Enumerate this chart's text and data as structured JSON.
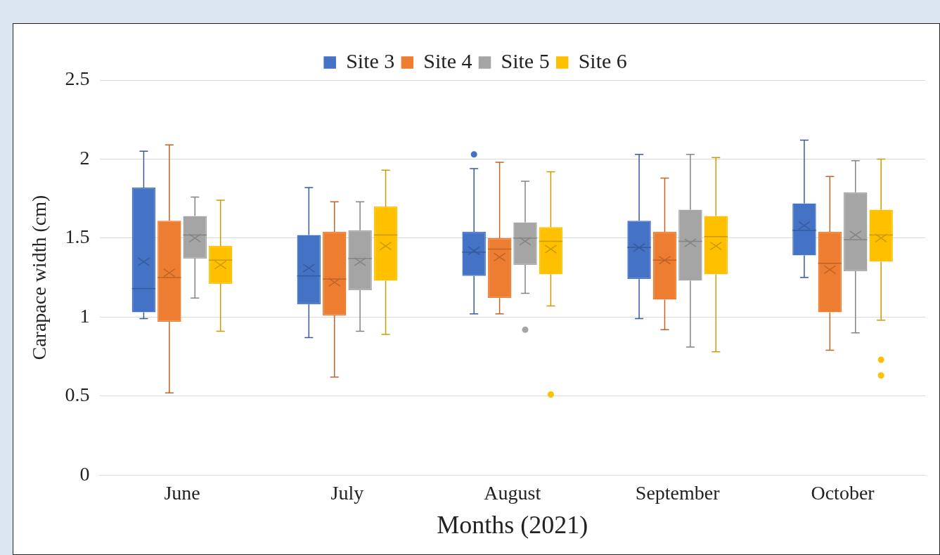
{
  "chart_data": {
    "type": "box",
    "xlabel": "Months (2021)",
    "ylabel": "Carapace width (cm)",
    "categories": [
      "June",
      "July",
      "August",
      "September",
      "October"
    ],
    "ylim": [
      0,
      2.5
    ],
    "yticks": [
      0,
      0.5,
      1,
      1.5,
      2,
      2.5
    ],
    "grid": "y",
    "legend": "top",
    "series": [
      {
        "name": "Site 3",
        "color": "#4472c4",
        "boxes": [
          {
            "low": 0.99,
            "q1": 1.03,
            "median": 1.18,
            "q3": 1.82,
            "high": 2.05,
            "mean": 1.35
          },
          {
            "low": 0.87,
            "q1": 1.08,
            "median": 1.26,
            "q3": 1.52,
            "high": 1.82,
            "mean": 1.31
          },
          {
            "low": 1.02,
            "q1": 1.26,
            "median": 1.41,
            "q3": 1.54,
            "high": 1.94,
            "mean": 1.42,
            "outliers": [
              2.03
            ]
          },
          {
            "low": 0.99,
            "q1": 1.24,
            "median": 1.44,
            "q3": 1.61,
            "high": 2.03,
            "mean": 1.44
          },
          {
            "low": 1.25,
            "q1": 1.39,
            "median": 1.55,
            "q3": 1.72,
            "high": 2.12,
            "mean": 1.58
          }
        ]
      },
      {
        "name": "Site 4",
        "color": "#ed7d31",
        "boxes": [
          {
            "low": 0.52,
            "q1": 0.97,
            "median": 1.25,
            "q3": 1.61,
            "high": 2.09,
            "mean": 1.28
          },
          {
            "low": 0.62,
            "q1": 1.01,
            "median": 1.24,
            "q3": 1.54,
            "high": 1.73,
            "mean": 1.22
          },
          {
            "low": 1.02,
            "q1": 1.12,
            "median": 1.43,
            "q3": 1.5,
            "high": 1.98,
            "mean": 1.38
          },
          {
            "low": 0.92,
            "q1": 1.11,
            "median": 1.36,
            "q3": 1.54,
            "high": 1.88,
            "mean": 1.36
          },
          {
            "low": 0.79,
            "q1": 1.03,
            "median": 1.34,
            "q3": 1.54,
            "high": 1.89,
            "mean": 1.3
          }
        ]
      },
      {
        "name": "Site 5",
        "color": "#a5a5a5",
        "boxes": [
          {
            "low": 1.12,
            "q1": 1.37,
            "median": 1.52,
            "q3": 1.64,
            "high": 1.76,
            "mean": 1.5
          },
          {
            "low": 0.91,
            "q1": 1.17,
            "median": 1.37,
            "q3": 1.55,
            "high": 1.73,
            "mean": 1.35
          },
          {
            "low": 1.15,
            "q1": 1.33,
            "median": 1.5,
            "q3": 1.6,
            "high": 1.86,
            "mean": 1.48,
            "outliers": [
              0.92
            ]
          },
          {
            "low": 0.81,
            "q1": 1.23,
            "median": 1.48,
            "q3": 1.68,
            "high": 2.03,
            "mean": 1.47
          },
          {
            "low": 0.9,
            "q1": 1.29,
            "median": 1.49,
            "q3": 1.79,
            "high": 1.99,
            "mean": 1.52
          }
        ]
      },
      {
        "name": "Site 6",
        "color": "#ffc000",
        "boxes": [
          {
            "low": 0.91,
            "q1": 1.21,
            "median": 1.36,
            "q3": 1.45,
            "high": 1.74,
            "mean": 1.33
          },
          {
            "low": 0.89,
            "q1": 1.23,
            "median": 1.52,
            "q3": 1.7,
            "high": 1.93,
            "mean": 1.45
          },
          {
            "low": 1.07,
            "q1": 1.27,
            "median": 1.48,
            "q3": 1.57,
            "high": 1.92,
            "mean": 1.43,
            "outliers": [
              0.51
            ]
          },
          {
            "low": 0.78,
            "q1": 1.27,
            "median": 1.51,
            "q3": 1.64,
            "high": 2.01,
            "mean": 1.45
          },
          {
            "low": 0.98,
            "q1": 1.35,
            "median": 1.52,
            "q3": 1.68,
            "high": 2.0,
            "mean": 1.5,
            "outliers": [
              0.73,
              0.63
            ]
          }
        ]
      }
    ]
  }
}
